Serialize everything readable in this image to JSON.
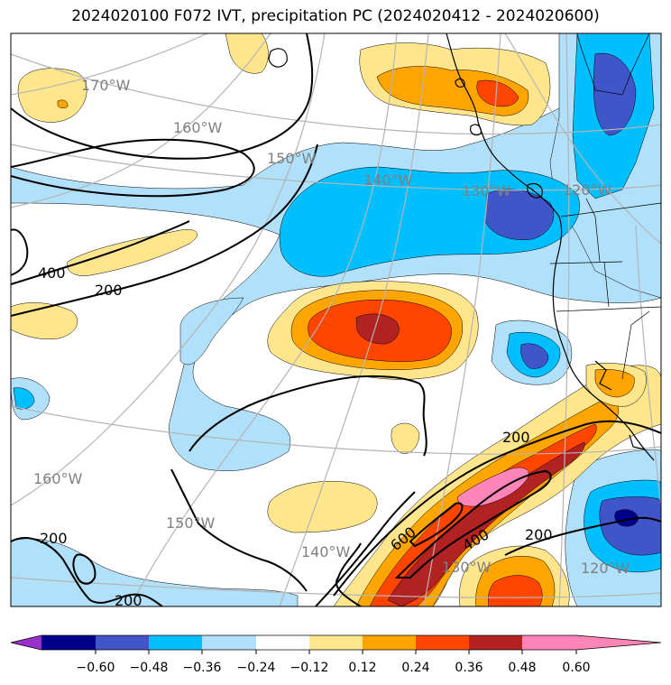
{
  "title": "2024020100 F072 IVT, precipitation PC (2024020412 - 2024020600)",
  "longitude_labels": [
    {
      "text": "170°W"
    },
    {
      "text": "160°W"
    },
    {
      "text": "150°W"
    },
    {
      "text": "140°W"
    },
    {
      "text": "130°W"
    },
    {
      "text": "120°W"
    },
    {
      "text": "160°W"
    },
    {
      "text": "150°W"
    },
    {
      "text": "140°W"
    },
    {
      "text": "130°W"
    },
    {
      "text": "120°W"
    }
  ],
  "ivt_contour_labels": [
    {
      "text": "400"
    },
    {
      "text": "200"
    },
    {
      "text": "200"
    },
    {
      "text": "600"
    },
    {
      "text": "400"
    },
    {
      "text": "200"
    },
    {
      "text": "200"
    },
    {
      "text": "200"
    }
  ],
  "colorbar": {
    "ticks": [
      "−0.60",
      "−0.48",
      "−0.36",
      "−0.24",
      "−0.12",
      "0.12",
      "0.24",
      "0.36",
      "0.48",
      "0.60"
    ],
    "colors": [
      "#9932cc",
      "#00008b",
      "#4056c8",
      "#00bfff",
      "#b0e0fa",
      "#ffffff",
      "#ffe68c",
      "#ffa500",
      "#ff4500",
      "#b22222",
      "#ff85b8"
    ]
  },
  "palette": {
    "neg_light": "#b0e0fa",
    "neg_mid": "#00bfff",
    "neg_strong": "#4056c8",
    "neg_max": "#00008b",
    "pos_light": "#ffe68c",
    "pos_mid": "#ffa500",
    "pos_strong": "#ff4500",
    "pos_max": "#b22222",
    "pos_extreme": "#ff85b8",
    "grid": "#b4b4b4",
    "contour": "#000000"
  }
}
